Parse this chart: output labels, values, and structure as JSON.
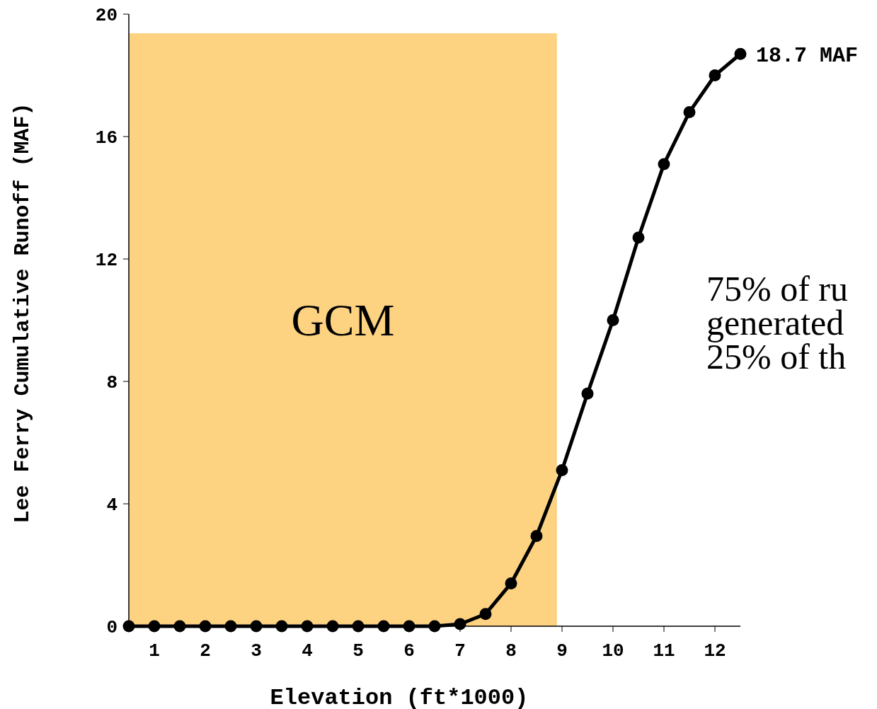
{
  "chart_data": {
    "type": "line",
    "xlabel": "Elevation (ft*1000)",
    "ylabel": "Lee Ferry Cumulative Runoff (MAF)",
    "x": [
      0.5,
      1,
      1.5,
      2,
      2.5,
      3,
      3.5,
      4,
      4.5,
      5,
      5.5,
      6,
      6.5,
      7,
      7.5,
      8,
      8.5,
      9,
      9.5,
      10,
      10.5,
      11,
      11.5,
      12,
      12.5
    ],
    "series": [
      {
        "color": "#000000",
        "values": [
          0,
          0,
          0,
          0,
          0,
          0,
          0,
          0,
          0,
          0,
          0,
          0,
          0,
          0.07,
          0.4,
          1.4,
          2.95,
          5.1,
          7.6,
          10,
          12.7,
          15.1,
          16.8,
          18,
          18.7
        ]
      }
    ],
    "xlim": [
      0.5,
      12.5
    ],
    "xticks": [
      1,
      2,
      3,
      4,
      5,
      6,
      7,
      8,
      9,
      10,
      11,
      12
    ],
    "ylim": [
      0,
      20
    ],
    "yticks": [
      0,
      4,
      8,
      12,
      16,
      20
    ],
    "marker": "circle",
    "line_style": "solid",
    "bands": [
      {
        "axis": "x",
        "from": 0.5,
        "to": 8.9,
        "label": "GCM",
        "color": "#fdd281"
      }
    ],
    "annotations": [
      {
        "text": "18.7 MAF",
        "x": 12.5,
        "y": 18.7
      },
      "75% of ru\ngenerated\n25% of th"
    ]
  }
}
